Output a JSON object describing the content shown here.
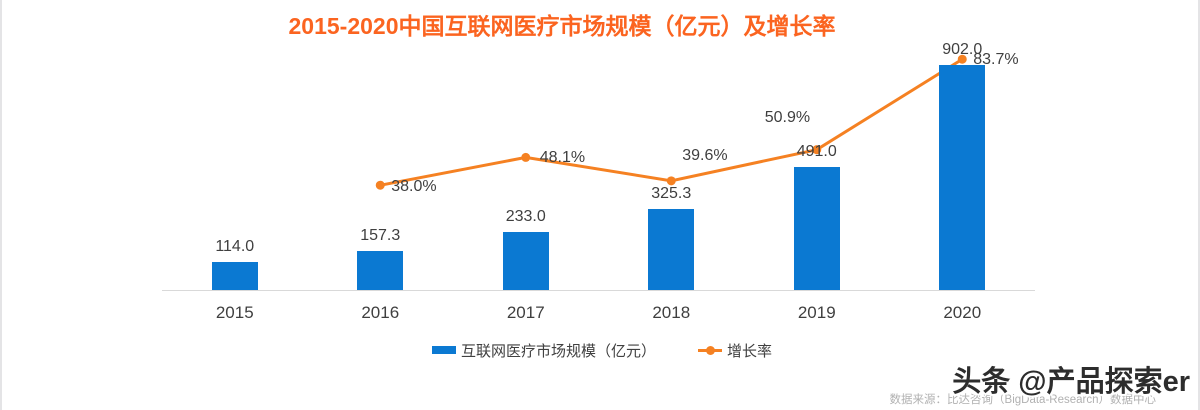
{
  "chart_data": {
    "type": "combo",
    "title": "2015-2020中国互联网医疗市场规模（亿元）及增长率",
    "categories": [
      "2015",
      "2016",
      "2017",
      "2018",
      "2019",
      "2020"
    ],
    "series": [
      {
        "name": "互联网医疗市场规模（亿元）",
        "type": "bar",
        "axis": "left",
        "color": "#0b79d2",
        "values": [
          114.0,
          157.3,
          233.0,
          325.3,
          491.0,
          902.0
        ],
        "labels": [
          "114.0",
          "157.3",
          "233.0",
          "325.3",
          "491.0",
          "902.0"
        ]
      },
      {
        "name": "增长率",
        "type": "line",
        "axis": "right",
        "color": "#f58122",
        "values": [
          null,
          38.0,
          48.1,
          39.6,
          50.9,
          83.7
        ],
        "labels": [
          null,
          "38.0%",
          "48.1%",
          "39.6%",
          "50.9%",
          "83.7%"
        ]
      }
    ],
    "left_axis_range": [
      0,
      1000
    ],
    "right_axis_range": [
      0,
      100
    ],
    "grid": false,
    "legend_position": "bottom",
    "colors": {
      "title": "#fb6420",
      "axis_line": "#d9d9d9",
      "label_text": "#3f3f3f"
    }
  },
  "footer": {
    "source_note": "数据来源：比达咨询（BigData-Research）数据中心",
    "watermark": "头条 @产品探索er"
  }
}
